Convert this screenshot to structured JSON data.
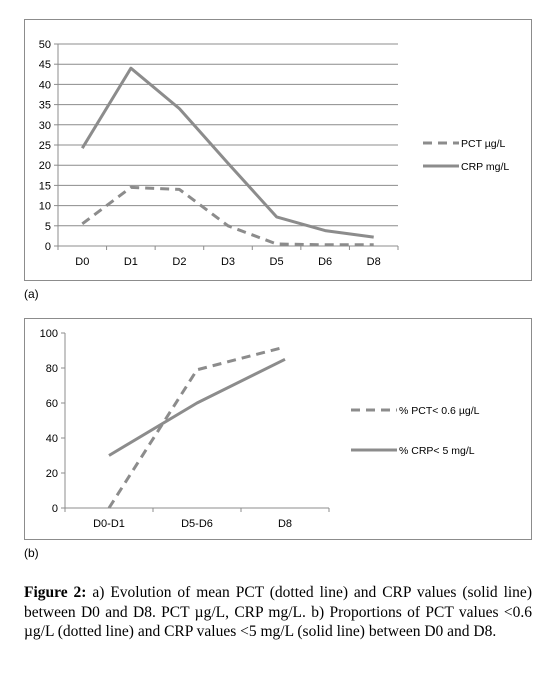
{
  "panel_labels": {
    "a": "(a)",
    "b": "(b)"
  },
  "caption": {
    "label": "Figure 2:",
    "text": " a) Evolution of mean PCT (dotted line) and CRP values (solid line) between D0 and D8. PCT µg/L, CRP mg/L. b) Proportions of PCT values <0.6 µg/L (dotted line) and CRP values <5 mg/L (solid line) between D0 and D8."
  },
  "chart_data": [
    {
      "type": "line",
      "categories": [
        "D0",
        "D1",
        "D2",
        "D3",
        "D5",
        "D6",
        "D8"
      ],
      "ylim": [
        0,
        50
      ],
      "yticks": [
        0,
        5,
        10,
        15,
        20,
        25,
        30,
        35,
        40,
        45,
        50
      ],
      "grid": true,
      "legend_position": "right",
      "series": [
        {
          "name": "PCT  µg/L",
          "style": "dashed",
          "color": "#8c8c8c",
          "values": [
            5.5,
            14.5,
            14,
            5,
            0.5,
            0.3,
            0.3
          ]
        },
        {
          "name": "CRP  mg/L",
          "style": "solid",
          "color": "#8c8c8c",
          "values": [
            24.2,
            44,
            34,
            20.5,
            7.2,
            3.8,
            2.2
          ]
        }
      ]
    },
    {
      "type": "line",
      "categories": [
        "D0-D1",
        "D5-D6",
        "D8"
      ],
      "ylim": [
        0,
        100
      ],
      "yticks": [
        0,
        20,
        40,
        60,
        80,
        100
      ],
      "grid": false,
      "legend_position": "right",
      "series": [
        {
          "name": "% PCT< 0.6 µg/L",
          "style": "dashed",
          "color": "#8c8c8c",
          "values": [
            0,
            79,
            92
          ]
        },
        {
          "name": "% CRP< 5 mg/L",
          "style": "solid",
          "color": "#8c8c8c",
          "values": [
            30,
            60,
            85
          ]
        }
      ]
    }
  ]
}
